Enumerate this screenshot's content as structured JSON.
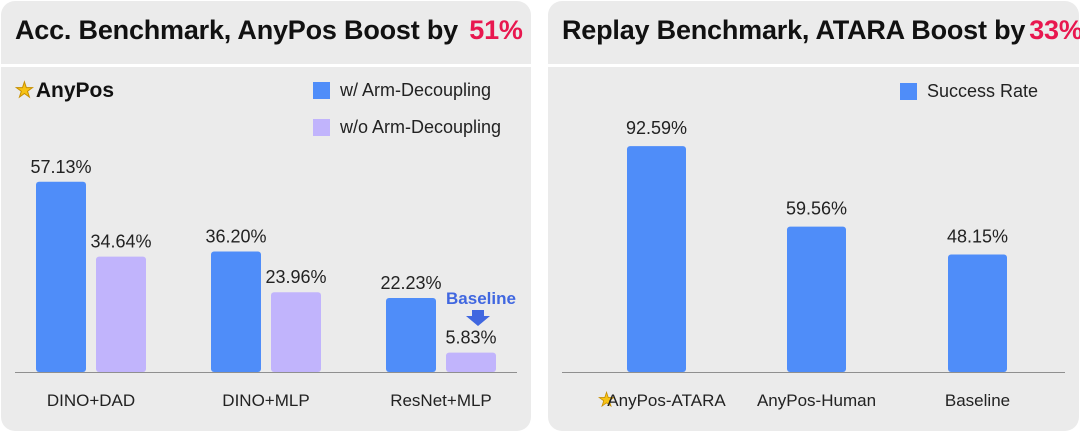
{
  "colors": {
    "primary": "#4f8df9",
    "secondary": "#c1b4fc",
    "highlight": "#e8174f",
    "baseline_label": "#4067e0"
  },
  "left": {
    "title": "Acc. Benchmark, AnyPos Boost by",
    "title_highlight": "51%",
    "brand": "AnyPos",
    "brand_icon": "star-icon",
    "legend": [
      "w/ Arm-Decoupling",
      "w/o Arm-Decoupling"
    ],
    "baseline_label": "Baseline",
    "baseline_icon": "arrow-down-icon"
  },
  "right": {
    "title": "Replay Benchmark, ATARA Boost by",
    "title_highlight": "33%",
    "legend": [
      "Success Rate"
    ],
    "category_icon": "star-icon"
  },
  "chart_data": [
    {
      "type": "bar",
      "title": "Acc. Benchmark, AnyPos Boost by 51%",
      "categories": [
        "DINO+DAD",
        "DINO+MLP",
        "ResNet+MLP"
      ],
      "series": [
        {
          "name": "w/ Arm-Decoupling",
          "values": [
            57.13,
            36.2,
            22.23
          ],
          "labels": [
            "57.13%",
            "36.20%",
            "22.23%"
          ]
        },
        {
          "name": "w/o Arm-Decoupling",
          "values": [
            34.64,
            23.96,
            5.83
          ],
          "labels": [
            "34.64%",
            "23.96%",
            "5.83%"
          ]
        }
      ],
      "ylim": [
        0,
        100
      ],
      "grid": false,
      "legend_position": "top-right"
    },
    {
      "type": "bar",
      "title": "Replay Benchmark, ATARA Boost by 33%",
      "categories": [
        "AnyPos-ATARA",
        "AnyPos-Human",
        "Baseline"
      ],
      "series": [
        {
          "name": "Success Rate",
          "values": [
            92.59,
            59.56,
            48.15
          ],
          "labels": [
            "92.59%",
            "59.56%",
            "48.15%"
          ]
        }
      ],
      "ylim": [
        0,
        100
      ],
      "grid": false,
      "legend_position": "top-right"
    }
  ]
}
